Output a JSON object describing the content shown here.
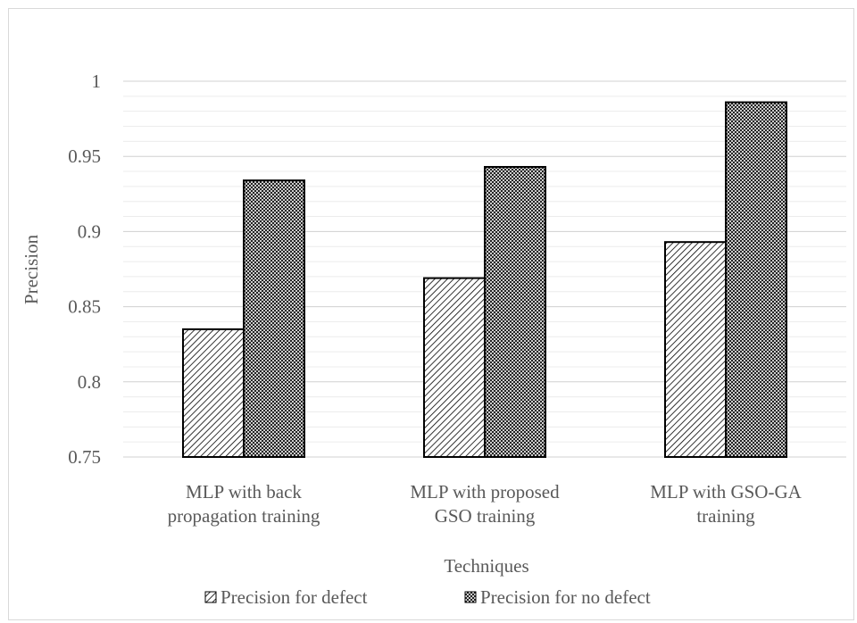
{
  "chart_data": {
    "type": "bar",
    "title": "",
    "xlabel": "Techniques",
    "ylabel": "Precision",
    "categories": [
      [
        "MLP with back",
        "propagation training"
      ],
      [
        "MLP with proposed",
        "GSO training"
      ],
      [
        "MLP with GSO-GA",
        "training"
      ]
    ],
    "series": [
      {
        "name": "Precision for defect",
        "values": [
          0.835,
          0.869,
          0.893
        ],
        "pattern": "diagonal-hatch"
      },
      {
        "name": "Precision for no defect",
        "values": [
          0.934,
          0.943,
          0.986
        ],
        "pattern": "crosshatch"
      }
    ],
    "ylim": [
      0.75,
      1.0
    ],
    "yticks": [
      "0.75",
      "0.8",
      "0.85",
      "0.9",
      "0.95",
      "1"
    ],
    "major_grid_step": 0.05,
    "minor_grid_step": 0.01,
    "grid": true,
    "legend_position": "bottom",
    "colors": {
      "grid": "#d9d9d9",
      "text": "#595959",
      "bar_stroke": "#000000"
    }
  }
}
